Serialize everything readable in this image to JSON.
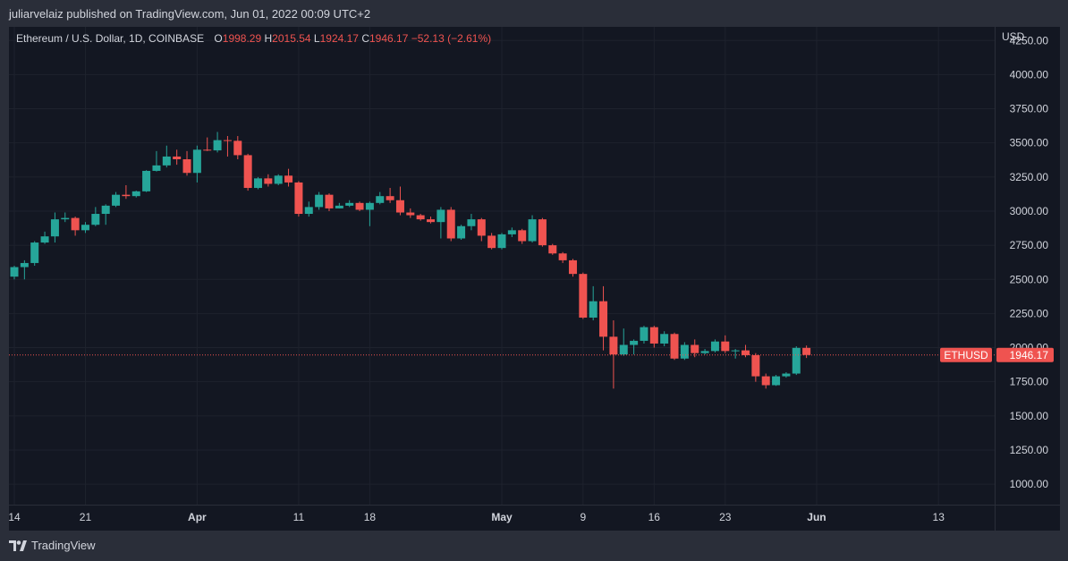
{
  "header": {
    "publisher_text": "juliarvelaiz published on TradingView.com, Jun 01, 2022 00:09 UTC+2"
  },
  "legend": {
    "symbol": "Ethereum / U.S. Dollar, 1D, COINBASE",
    "open_label": "O",
    "open": "1998.29",
    "high_label": "H",
    "high": "2015.54",
    "low_label": "L",
    "low": "1924.17",
    "close_label": "C",
    "close": "1946.17",
    "change": "−52.13 (−2.61%)"
  },
  "price_axis": {
    "currency": "USD",
    "ticks": [
      "4250.00",
      "4000.00",
      "3750.00",
      "3500.00",
      "3250.00",
      "3000.00",
      "2750.00",
      "2500.00",
      "2250.00",
      "2000.00",
      "1750.00",
      "1500.00",
      "1250.00",
      "1000.00"
    ],
    "symbol_badge": "ETHUSD",
    "price_badge": "1946.17"
  },
  "time_axis": {
    "labels": [
      {
        "text": "14",
        "date": "2022-03-14"
      },
      {
        "text": "21",
        "date": "2022-03-21"
      },
      {
        "text": "Apr",
        "date": "2022-04-01"
      },
      {
        "text": "11",
        "date": "2022-04-11"
      },
      {
        "text": "18",
        "date": "2022-04-18"
      },
      {
        "text": "May",
        "date": "2022-05-01"
      },
      {
        "text": "9",
        "date": "2022-05-09"
      },
      {
        "text": "16",
        "date": "2022-05-16"
      },
      {
        "text": "23",
        "date": "2022-05-23"
      },
      {
        "text": "Jun",
        "date": "2022-06-01"
      },
      {
        "text": "13",
        "date": "2022-06-13"
      }
    ]
  },
  "footer": {
    "brand": "TradingView"
  },
  "colors": {
    "up": "#26a69a",
    "down": "#ef5350",
    "background": "#131722",
    "grid": "#1e222d",
    "text": "#d1d4dc"
  },
  "chart_data": {
    "type": "candlestick",
    "title": "Ethereum / U.S. Dollar, 1D, COINBASE",
    "ylabel": "USD",
    "ylim": [
      850,
      4350
    ],
    "xlim": [
      "2022-03-14",
      "2022-06-18"
    ],
    "grid": true,
    "last_price": 1946.17,
    "candles": [
      {
        "date": "2022-03-14",
        "o": 2520,
        "h": 2600,
        "l": 2500,
        "c": 2590
      },
      {
        "date": "2022-03-15",
        "o": 2590,
        "h": 2640,
        "l": 2500,
        "c": 2620
      },
      {
        "date": "2022-03-16",
        "o": 2620,
        "h": 2780,
        "l": 2600,
        "c": 2770
      },
      {
        "date": "2022-03-17",
        "o": 2770,
        "h": 2850,
        "l": 2760,
        "c": 2815
      },
      {
        "date": "2022-03-18",
        "o": 2815,
        "h": 2990,
        "l": 2770,
        "c": 2940
      },
      {
        "date": "2022-03-19",
        "o": 2940,
        "h": 2990,
        "l": 2920,
        "c": 2950
      },
      {
        "date": "2022-03-20",
        "o": 2950,
        "h": 2960,
        "l": 2820,
        "c": 2860
      },
      {
        "date": "2022-03-21",
        "o": 2860,
        "h": 2920,
        "l": 2840,
        "c": 2900
      },
      {
        "date": "2022-03-22",
        "o": 2900,
        "h": 3030,
        "l": 2890,
        "c": 2980
      },
      {
        "date": "2022-03-23",
        "o": 2980,
        "h": 3050,
        "l": 2900,
        "c": 3040
      },
      {
        "date": "2022-03-24",
        "o": 3040,
        "h": 3140,
        "l": 3030,
        "c": 3120
      },
      {
        "date": "2022-03-25",
        "o": 3120,
        "h": 3190,
        "l": 3090,
        "c": 3110
      },
      {
        "date": "2022-03-26",
        "o": 3110,
        "h": 3150,
        "l": 3100,
        "c": 3145
      },
      {
        "date": "2022-03-27",
        "o": 3145,
        "h": 3300,
        "l": 3140,
        "c": 3295
      },
      {
        "date": "2022-03-28",
        "o": 3295,
        "h": 3440,
        "l": 3290,
        "c": 3335
      },
      {
        "date": "2022-03-29",
        "o": 3335,
        "h": 3480,
        "l": 3320,
        "c": 3400
      },
      {
        "date": "2022-03-30",
        "o": 3400,
        "h": 3450,
        "l": 3340,
        "c": 3380
      },
      {
        "date": "2022-03-31",
        "o": 3380,
        "h": 3440,
        "l": 3260,
        "c": 3280
      },
      {
        "date": "2022-04-01",
        "o": 3280,
        "h": 3480,
        "l": 3210,
        "c": 3450
      },
      {
        "date": "2022-04-02",
        "o": 3450,
        "h": 3540,
        "l": 3440,
        "c": 3445
      },
      {
        "date": "2022-04-03",
        "o": 3445,
        "h": 3580,
        "l": 3430,
        "c": 3520
      },
      {
        "date": "2022-04-04",
        "o": 3520,
        "h": 3550,
        "l": 3400,
        "c": 3515
      },
      {
        "date": "2022-04-05",
        "o": 3515,
        "h": 3550,
        "l": 3380,
        "c": 3410
      },
      {
        "date": "2022-04-06",
        "o": 3410,
        "h": 3420,
        "l": 3150,
        "c": 3170
      },
      {
        "date": "2022-04-07",
        "o": 3170,
        "h": 3250,
        "l": 3160,
        "c": 3240
      },
      {
        "date": "2022-04-08",
        "o": 3240,
        "h": 3270,
        "l": 3180,
        "c": 3200
      },
      {
        "date": "2022-04-09",
        "o": 3200,
        "h": 3270,
        "l": 3190,
        "c": 3260
      },
      {
        "date": "2022-04-10",
        "o": 3260,
        "h": 3310,
        "l": 3180,
        "c": 3210
      },
      {
        "date": "2022-04-11",
        "o": 3210,
        "h": 3220,
        "l": 2960,
        "c": 2980
      },
      {
        "date": "2022-04-12",
        "o": 2980,
        "h": 3070,
        "l": 2960,
        "c": 3030
      },
      {
        "date": "2022-04-13",
        "o": 3030,
        "h": 3140,
        "l": 3010,
        "c": 3120
      },
      {
        "date": "2022-04-14",
        "o": 3120,
        "h": 3130,
        "l": 3000,
        "c": 3020
      },
      {
        "date": "2022-04-15",
        "o": 3020,
        "h": 3060,
        "l": 3020,
        "c": 3040
      },
      {
        "date": "2022-04-16",
        "o": 3040,
        "h": 3080,
        "l": 3030,
        "c": 3060
      },
      {
        "date": "2022-04-17",
        "o": 3060,
        "h": 3070,
        "l": 3000,
        "c": 3010
      },
      {
        "date": "2022-04-18",
        "o": 3010,
        "h": 3070,
        "l": 2890,
        "c": 3060
      },
      {
        "date": "2022-04-19",
        "o": 3060,
        "h": 3140,
        "l": 3050,
        "c": 3110
      },
      {
        "date": "2022-04-20",
        "o": 3110,
        "h": 3170,
        "l": 3060,
        "c": 3080
      },
      {
        "date": "2022-04-21",
        "o": 3080,
        "h": 3180,
        "l": 2970,
        "c": 2990
      },
      {
        "date": "2022-04-22",
        "o": 2990,
        "h": 3020,
        "l": 2950,
        "c": 2970
      },
      {
        "date": "2022-04-23",
        "o": 2970,
        "h": 2980,
        "l": 2930,
        "c": 2940
      },
      {
        "date": "2022-04-24",
        "o": 2940,
        "h": 2960,
        "l": 2910,
        "c": 2920
      },
      {
        "date": "2022-04-25",
        "o": 2920,
        "h": 3030,
        "l": 2800,
        "c": 3010
      },
      {
        "date": "2022-04-26",
        "o": 3010,
        "h": 3030,
        "l": 2780,
        "c": 2800
      },
      {
        "date": "2022-04-27",
        "o": 2800,
        "h": 2900,
        "l": 2790,
        "c": 2890
      },
      {
        "date": "2022-04-28",
        "o": 2890,
        "h": 2980,
        "l": 2860,
        "c": 2940
      },
      {
        "date": "2022-04-29",
        "o": 2940,
        "h": 2950,
        "l": 2780,
        "c": 2820
      },
      {
        "date": "2022-04-30",
        "o": 2820,
        "h": 2840,
        "l": 2720,
        "c": 2730
      },
      {
        "date": "2022-05-01",
        "o": 2730,
        "h": 2840,
        "l": 2720,
        "c": 2830
      },
      {
        "date": "2022-05-02",
        "o": 2830,
        "h": 2880,
        "l": 2810,
        "c": 2860
      },
      {
        "date": "2022-05-03",
        "o": 2860,
        "h": 2870,
        "l": 2760,
        "c": 2780
      },
      {
        "date": "2022-05-04",
        "o": 2780,
        "h": 2970,
        "l": 2770,
        "c": 2940
      },
      {
        "date": "2022-05-05",
        "o": 2940,
        "h": 2950,
        "l": 2740,
        "c": 2750
      },
      {
        "date": "2022-05-06",
        "o": 2750,
        "h": 2760,
        "l": 2680,
        "c": 2690
      },
      {
        "date": "2022-05-07",
        "o": 2690,
        "h": 2700,
        "l": 2620,
        "c": 2640
      },
      {
        "date": "2022-05-08",
        "o": 2640,
        "h": 2650,
        "l": 2520,
        "c": 2540
      },
      {
        "date": "2022-05-09",
        "o": 2540,
        "h": 2550,
        "l": 2210,
        "c": 2220
      },
      {
        "date": "2022-05-10",
        "o": 2220,
        "h": 2450,
        "l": 2200,
        "c": 2340
      },
      {
        "date": "2022-05-11",
        "o": 2340,
        "h": 2450,
        "l": 1980,
        "c": 2080
      },
      {
        "date": "2022-05-12",
        "o": 2080,
        "h": 2200,
        "l": 1700,
        "c": 1950
      },
      {
        "date": "2022-05-13",
        "o": 1950,
        "h": 2140,
        "l": 1940,
        "c": 2020
      },
      {
        "date": "2022-05-14",
        "o": 2020,
        "h": 2060,
        "l": 1950,
        "c": 2050
      },
      {
        "date": "2022-05-15",
        "o": 2050,
        "h": 2160,
        "l": 2030,
        "c": 2150
      },
      {
        "date": "2022-05-16",
        "o": 2150,
        "h": 2160,
        "l": 2000,
        "c": 2030
      },
      {
        "date": "2022-05-17",
        "o": 2030,
        "h": 2120,
        "l": 2010,
        "c": 2100
      },
      {
        "date": "2022-05-18",
        "o": 2100,
        "h": 2110,
        "l": 1910,
        "c": 1920
      },
      {
        "date": "2022-05-19",
        "o": 1920,
        "h": 2040,
        "l": 1910,
        "c": 2020
      },
      {
        "date": "2022-05-20",
        "o": 2020,
        "h": 2060,
        "l": 1930,
        "c": 1960
      },
      {
        "date": "2022-05-21",
        "o": 1960,
        "h": 1990,
        "l": 1950,
        "c": 1975
      },
      {
        "date": "2022-05-22",
        "o": 1975,
        "h": 2060,
        "l": 1965,
        "c": 2045
      },
      {
        "date": "2022-05-23",
        "o": 2045,
        "h": 2090,
        "l": 1960,
        "c": 1975
      },
      {
        "date": "2022-05-24",
        "o": 1975,
        "h": 1990,
        "l": 1920,
        "c": 1980
      },
      {
        "date": "2022-05-25",
        "o": 1980,
        "h": 2020,
        "l": 1930,
        "c": 1945
      },
      {
        "date": "2022-05-26",
        "o": 1945,
        "h": 1960,
        "l": 1750,
        "c": 1790
      },
      {
        "date": "2022-05-27",
        "o": 1790,
        "h": 1810,
        "l": 1700,
        "c": 1725
      },
      {
        "date": "2022-05-28",
        "o": 1725,
        "h": 1800,
        "l": 1720,
        "c": 1790
      },
      {
        "date": "2022-05-29",
        "o": 1790,
        "h": 1820,
        "l": 1780,
        "c": 1810
      },
      {
        "date": "2022-05-30",
        "o": 1810,
        "h": 2010,
        "l": 1800,
        "c": 1998.29
      },
      {
        "date": "2022-05-31",
        "o": 1998.29,
        "h": 2015.54,
        "l": 1924.17,
        "c": 1946.17
      }
    ]
  }
}
